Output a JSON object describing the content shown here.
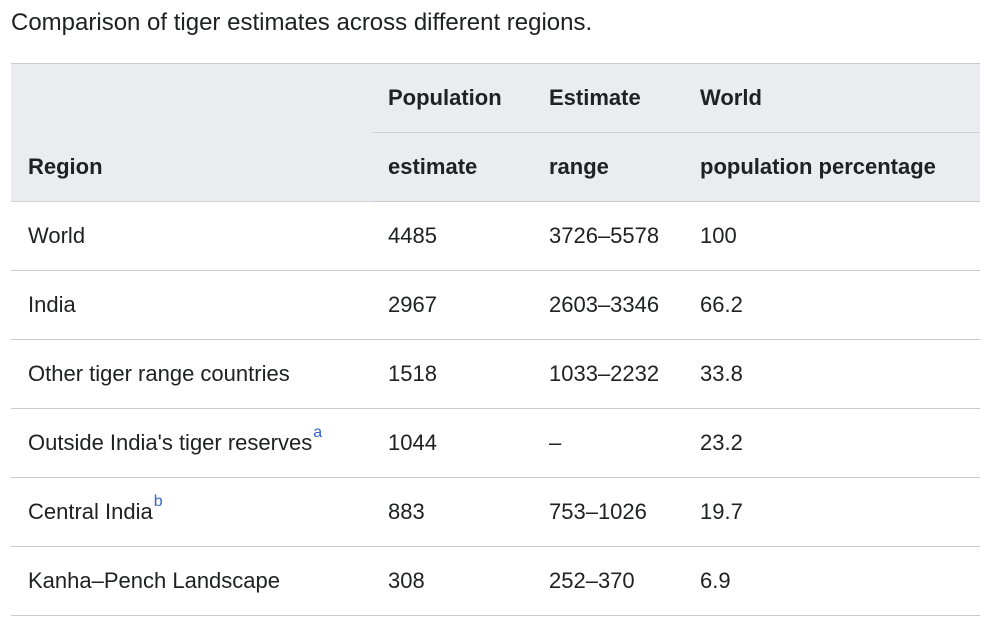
{
  "caption": "Comparison of tiger estimates across different regions.",
  "table": {
    "headers": {
      "region": "Region",
      "population_line1": "Population",
      "population_line2": "estimate",
      "range_line1": "Estimate",
      "range_line2": "range",
      "world_line1": "World",
      "world_line2": "population percentage"
    },
    "rows": [
      {
        "region": "World",
        "note": "",
        "population": "4485",
        "range": "3726–5578",
        "percentage": "100"
      },
      {
        "region": "India",
        "note": "",
        "population": "2967",
        "range": "2603–3346",
        "percentage": "66.2"
      },
      {
        "region": "Other tiger range countries",
        "note": "",
        "population": "1518",
        "range": "1033–2232",
        "percentage": "33.8"
      },
      {
        "region": "Outside India's tiger reserves",
        "note": "a",
        "population": "1044",
        "range": "–",
        "percentage": "23.2"
      },
      {
        "region": "Central India",
        "note": "b",
        "population": "883",
        "range": "753–1026",
        "percentage": "19.7"
      },
      {
        "region": "Kanha–Pench Landscape",
        "note": "",
        "population": "308",
        "range": "252–370",
        "percentage": "6.9"
      }
    ]
  },
  "colors": {
    "header_background": "#eaecf0",
    "border": "#c8ccd1",
    "text": "#202122",
    "link": "#3366cc"
  }
}
